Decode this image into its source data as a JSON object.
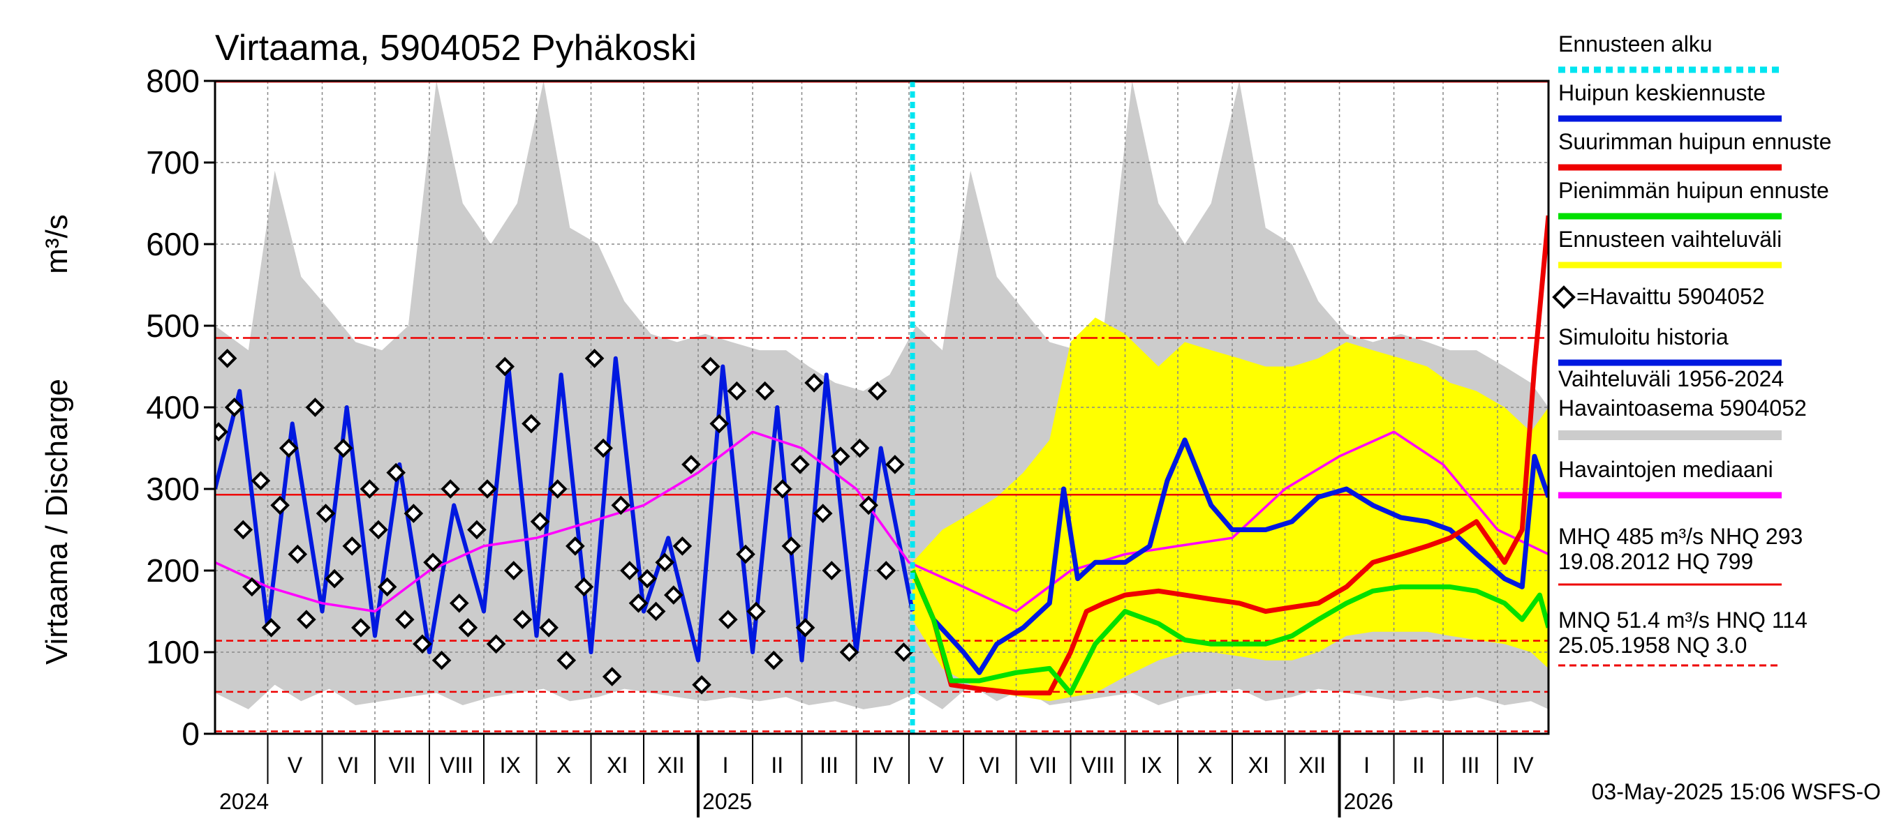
{
  "chart_data": {
    "type": "line",
    "title": "Virtaama, 5904052 Pyhäkoski",
    "ylabel": "Virtaama / Discharge",
    "ylabel_unit": "m³/s",
    "ylim": [
      0,
      800
    ],
    "yticks": [
      0,
      100,
      200,
      300,
      400,
      500,
      600,
      700,
      800
    ],
    "xlim": [
      "2024-04-01",
      "2026-04-30"
    ],
    "forecast_start": "2025-05-03",
    "grid": true,
    "legend_position": "right",
    "months": [
      {
        "label": "V",
        "start": "2024-05-01"
      },
      {
        "label": "VI",
        "start": "2024-06-01"
      },
      {
        "label": "VII",
        "start": "2024-07-01"
      },
      {
        "label": "VIII",
        "start": "2024-08-01"
      },
      {
        "label": "IX",
        "start": "2024-09-01"
      },
      {
        "label": "X",
        "start": "2024-10-01"
      },
      {
        "label": "XI",
        "start": "2024-11-01"
      },
      {
        "label": "XII",
        "start": "2024-12-01"
      },
      {
        "label": "I",
        "start": "2025-01-01"
      },
      {
        "label": "II",
        "start": "2025-02-01"
      },
      {
        "label": "III",
        "start": "2025-03-01"
      },
      {
        "label": "IV",
        "start": "2025-04-01"
      },
      {
        "label": "V",
        "start": "2025-05-01"
      },
      {
        "label": "VI",
        "start": "2025-06-01"
      },
      {
        "label": "VII",
        "start": "2025-07-01"
      },
      {
        "label": "VIII",
        "start": "2025-08-01"
      },
      {
        "label": "IX",
        "start": "2025-09-01"
      },
      {
        "label": "X",
        "start": "2025-10-01"
      },
      {
        "label": "XI",
        "start": "2025-11-01"
      },
      {
        "label": "XII",
        "start": "2025-12-01"
      },
      {
        "label": "I",
        "start": "2026-01-01"
      },
      {
        "label": "II",
        "start": "2026-02-01"
      },
      {
        "label": "III",
        "start": "2026-03-01"
      },
      {
        "label": "IV",
        "start": "2026-04-01"
      }
    ],
    "years": [
      {
        "label": "2024",
        "start": "2024-04-01"
      },
      {
        "label": "2025",
        "start": "2025-01-01"
      },
      {
        "label": "2026",
        "start": "2026-01-01"
      }
    ],
    "reference_lines": [
      {
        "name": "MHQ",
        "value": 485,
        "style": "dashdot"
      },
      {
        "name": "NHQ",
        "value": 293,
        "style": "solid"
      },
      {
        "name": "HQ",
        "value": 799,
        "style": "solid"
      },
      {
        "name": "MNQ",
        "value": 51.4,
        "style": "dashed"
      },
      {
        "name": "HNQ",
        "value": 114,
        "style": "dashed"
      },
      {
        "name": "NQ",
        "value": 3.0,
        "style": "dashed"
      }
    ],
    "legend": [
      {
        "label": "Ennusteen alku",
        "color": "#00e5f0",
        "style": "dotted"
      },
      {
        "label": "Huipun keskiennuste",
        "color": "#0018e0",
        "style": "solid"
      },
      {
        "label": "Suurimman huipun ennuste",
        "color": "#ee0000",
        "style": "solid"
      },
      {
        "label": "Pienimmän huipun ennuste",
        "color": "#00e000",
        "style": "solid"
      },
      {
        "label": "Ennusteen vaihteluväli",
        "color": "#ffff00",
        "style": "solid"
      },
      {
        "label": "=Havaittu 5904052",
        "color": "#000000",
        "style": "marker"
      },
      {
        "label": "Simuloitu historia",
        "color": "#0018e0",
        "style": "solid"
      },
      {
        "label": "Vaihteluväli 1956-2024",
        "label2": " Havaintoasema 5904052",
        "color": "#cccccc",
        "style": "solid"
      },
      {
        "label": "Havaintojen mediaani",
        "color": "#ff00ff",
        "style": "solid"
      }
    ],
    "stats": [
      {
        "line1": "MHQ  485 m³/s NHQ  293",
        "line2": "19.08.2012 HQ  799"
      },
      {
        "line1": "MNQ  51.4 m³/s HNQ  114",
        "line2": "25.05.1958 NQ  3.0"
      }
    ],
    "footer": "03-May-2025 15:06 WSFS-O",
    "series": [
      {
        "name": "Vaihteluväli 1956-2024",
        "kind": "band",
        "color": "#cccccc",
        "x": [
          "2024-04-01",
          "2024-04-20",
          "2024-05-05",
          "2024-05-20",
          "2024-06-05",
          "2024-06-20",
          "2024-07-05",
          "2024-07-20",
          "2024-08-05",
          "2024-08-20",
          "2024-09-05",
          "2024-09-20",
          "2024-10-05",
          "2024-10-20",
          "2024-11-05",
          "2024-11-20",
          "2024-12-05",
          "2024-12-20",
          "2025-01-05",
          "2025-01-20",
          "2025-02-05",
          "2025-02-20",
          "2025-03-05",
          "2025-03-20",
          "2025-04-05",
          "2025-04-20",
          "2025-05-05",
          "2025-05-20",
          "2025-06-05",
          "2025-06-20",
          "2025-07-05",
          "2025-07-20",
          "2025-08-05",
          "2025-08-20",
          "2025-09-05",
          "2025-09-20",
          "2025-10-05",
          "2025-10-20",
          "2025-11-05",
          "2025-11-20",
          "2025-12-05",
          "2025-12-20",
          "2026-01-05",
          "2026-01-20",
          "2026-02-05",
          "2026-02-20",
          "2026-03-05",
          "2026-03-20",
          "2026-04-05",
          "2026-04-20",
          "2026-04-30"
        ],
        "upper": [
          500,
          470,
          690,
          560,
          520,
          480,
          470,
          500,
          800,
          650,
          600,
          650,
          800,
          620,
          600,
          530,
          490,
          480,
          490,
          480,
          470,
          470,
          450,
          430,
          420,
          440,
          500,
          470,
          690,
          560,
          520,
          480,
          470,
          500,
          800,
          650,
          600,
          650,
          800,
          620,
          600,
          530,
          490,
          480,
          490,
          480,
          470,
          470,
          450,
          430,
          400
        ],
        "lower": [
          50,
          30,
          60,
          40,
          55,
          35,
          40,
          45,
          50,
          35,
          45,
          50,
          55,
          40,
          45,
          55,
          50,
          45,
          40,
          45,
          40,
          45,
          35,
          40,
          30,
          35,
          50,
          30,
          60,
          40,
          55,
          35,
          40,
          45,
          50,
          35,
          45,
          50,
          55,
          40,
          45,
          55,
          50,
          45,
          40,
          45,
          40,
          45,
          35,
          40,
          30
        ]
      },
      {
        "name": "Ennusteen vaihteluväli",
        "kind": "band",
        "color": "#ffff00",
        "x": [
          "2025-05-03",
          "2025-05-20",
          "2025-06-05",
          "2025-06-20",
          "2025-07-05",
          "2025-07-20",
          "2025-08-01",
          "2025-08-15",
          "2025-09-01",
          "2025-09-20",
          "2025-10-05",
          "2025-10-20",
          "2025-11-05",
          "2025-11-20",
          "2025-12-05",
          "2025-12-20",
          "2026-01-05",
          "2026-01-20",
          "2026-02-05",
          "2026-02-20",
          "2026-03-05",
          "2026-03-20",
          "2026-04-05",
          "2026-04-20",
          "2026-04-30"
        ],
        "upper": [
          210,
          250,
          270,
          290,
          320,
          360,
          480,
          510,
          490,
          450,
          480,
          470,
          460,
          450,
          450,
          460,
          480,
          470,
          460,
          450,
          430,
          420,
          400,
          370,
          400
        ],
        "lower": [
          140,
          80,
          60,
          50,
          45,
          40,
          45,
          50,
          70,
          90,
          100,
          100,
          95,
          90,
          90,
          100,
          120,
          125,
          125,
          125,
          120,
          115,
          110,
          100,
          80
        ]
      },
      {
        "name": "Simuloitu historia",
        "kind": "line",
        "color": "#0018e0",
        "x": [
          "2024-04-01",
          "2024-04-15",
          "2024-05-01",
          "2024-05-15",
          "2024-06-01",
          "2024-06-15",
          "2024-07-01",
          "2024-07-15",
          "2024-08-01",
          "2024-08-15",
          "2024-09-01",
          "2024-09-15",
          "2024-10-01",
          "2024-10-15",
          "2024-11-01",
          "2024-11-15",
          "2024-12-01",
          "2024-12-15",
          "2025-01-01",
          "2025-01-15",
          "2025-02-01",
          "2025-02-15",
          "2025-03-01",
          "2025-03-15",
          "2025-04-01",
          "2025-04-15",
          "2025-05-03"
        ],
        "values": [
          300,
          420,
          130,
          380,
          150,
          400,
          120,
          330,
          100,
          280,
          150,
          450,
          120,
          440,
          100,
          460,
          150,
          240,
          90,
          450,
          100,
          400,
          90,
          440,
          100,
          350,
          150
        ]
      },
      {
        "name": "Havaintojen mediaani",
        "kind": "line",
        "color": "#ff00ff",
        "x": [
          "2024-04-01",
          "2024-05-01",
          "2024-06-01",
          "2024-07-01",
          "2024-08-01",
          "2024-09-01",
          "2024-10-01",
          "2024-11-01",
          "2024-12-01",
          "2025-01-01",
          "2025-02-01",
          "2025-03-01",
          "2025-04-01",
          "2025-05-01",
          "2025-06-01",
          "2025-07-01",
          "2025-08-01",
          "2025-09-01",
          "2025-10-01",
          "2025-11-01",
          "2025-12-01",
          "2026-01-01",
          "2026-02-01",
          "2026-03-01",
          "2026-04-01",
          "2026-04-30"
        ],
        "values": [
          210,
          180,
          160,
          150,
          200,
          230,
          240,
          260,
          280,
          320,
          370,
          350,
          300,
          210,
          180,
          150,
          200,
          220,
          230,
          240,
          300,
          340,
          370,
          330,
          250,
          220
        ]
      },
      {
        "name": "Huipun keskiennuste",
        "kind": "line",
        "color": "#0018e0",
        "x": [
          "2025-05-03",
          "2025-05-15",
          "2025-06-01",
          "2025-06-10",
          "2025-06-20",
          "2025-07-05",
          "2025-07-20",
          "2025-07-28",
          "2025-08-05",
          "2025-08-15",
          "2025-09-01",
          "2025-09-15",
          "2025-09-25",
          "2025-10-05",
          "2025-10-20",
          "2025-11-01",
          "2025-11-20",
          "2025-12-05",
          "2025-12-20",
          "2026-01-05",
          "2026-01-20",
          "2026-02-05",
          "2026-02-20",
          "2026-03-05",
          "2026-03-20",
          "2026-04-05",
          "2026-04-15",
          "2026-04-22",
          "2026-04-30"
        ],
        "values": [
          200,
          140,
          100,
          75,
          110,
          130,
          160,
          300,
          190,
          210,
          210,
          230,
          310,
          360,
          280,
          250,
          250,
          260,
          290,
          300,
          280,
          265,
          260,
          250,
          220,
          190,
          180,
          340,
          290
        ]
      },
      {
        "name": "Suurimman huipun ennuste",
        "kind": "line",
        "color": "#ee0000",
        "x": [
          "2025-05-03",
          "2025-05-15",
          "2025-05-25",
          "2025-06-10",
          "2025-07-01",
          "2025-07-20",
          "2025-08-01",
          "2025-08-10",
          "2025-08-20",
          "2025-09-01",
          "2025-09-20",
          "2025-10-05",
          "2025-10-20",
          "2025-11-05",
          "2025-11-20",
          "2025-12-05",
          "2025-12-20",
          "2026-01-05",
          "2026-01-20",
          "2026-02-05",
          "2026-02-20",
          "2026-03-05",
          "2026-03-20",
          "2026-04-05",
          "2026-04-15",
          "2026-04-22",
          "2026-04-30"
        ],
        "values": [
          200,
          140,
          60,
          55,
          50,
          50,
          100,
          150,
          160,
          170,
          175,
          170,
          165,
          160,
          150,
          155,
          160,
          180,
          210,
          220,
          230,
          240,
          260,
          210,
          250,
          450,
          635
        ]
      },
      {
        "name": "Pienimmän huipun ennuste",
        "kind": "line",
        "color": "#00e000",
        "x": [
          "2025-05-03",
          "2025-05-15",
          "2025-05-25",
          "2025-06-10",
          "2025-07-01",
          "2025-07-20",
          "2025-08-01",
          "2025-08-15",
          "2025-09-01",
          "2025-09-20",
          "2025-10-05",
          "2025-10-20",
          "2025-11-05",
          "2025-11-20",
          "2025-12-05",
          "2025-12-20",
          "2026-01-05",
          "2026-01-20",
          "2026-02-05",
          "2026-02-20",
          "2026-03-05",
          "2026-03-20",
          "2026-04-05",
          "2026-04-15",
          "2026-04-25",
          "2026-04-30"
        ],
        "values": [
          200,
          140,
          65,
          65,
          75,
          80,
          50,
          110,
          150,
          135,
          115,
          110,
          110,
          110,
          120,
          140,
          160,
          175,
          180,
          180,
          180,
          175,
          160,
          140,
          170,
          130
        ]
      },
      {
        "name": "=Havaittu 5904052",
        "kind": "scatter",
        "color": "#000000",
        "x": [
          "2024-04-03",
          "2024-04-08",
          "2024-04-12",
          "2024-04-17",
          "2024-04-22",
          "2024-04-27",
          "2024-05-03",
          "2024-05-08",
          "2024-05-13",
          "2024-05-18",
          "2024-05-23",
          "2024-05-28",
          "2024-06-03",
          "2024-06-08",
          "2024-06-13",
          "2024-06-18",
          "2024-06-23",
          "2024-06-28",
          "2024-07-03",
          "2024-07-08",
          "2024-07-13",
          "2024-07-18",
          "2024-07-23",
          "2024-07-28",
          "2024-08-03",
          "2024-08-08",
          "2024-08-13",
          "2024-08-18",
          "2024-08-23",
          "2024-08-28",
          "2024-09-03",
          "2024-09-08",
          "2024-09-13",
          "2024-09-18",
          "2024-09-23",
          "2024-09-28",
          "2024-10-03",
          "2024-10-08",
          "2024-10-13",
          "2024-10-18",
          "2024-10-23",
          "2024-10-28",
          "2024-11-03",
          "2024-11-08",
          "2024-11-13",
          "2024-11-18",
          "2024-11-23",
          "2024-11-28",
          "2024-12-03",
          "2024-12-08",
          "2024-12-13",
          "2024-12-18",
          "2024-12-23",
          "2024-12-28",
          "2025-01-03",
          "2025-01-08",
          "2025-01-13",
          "2025-01-18",
          "2025-01-23",
          "2025-01-28",
          "2025-02-03",
          "2025-02-08",
          "2025-02-13",
          "2025-02-18",
          "2025-02-23",
          "2025-02-28",
          "2025-03-03",
          "2025-03-08",
          "2025-03-13",
          "2025-03-18",
          "2025-03-23",
          "2025-03-28",
          "2025-04-03",
          "2025-04-08",
          "2025-04-13",
          "2025-04-18",
          "2025-04-23",
          "2025-04-28"
        ],
        "values": [
          370,
          460,
          400,
          250,
          180,
          310,
          130,
          280,
          350,
          220,
          140,
          400,
          270,
          190,
          350,
          230,
          130,
          300,
          250,
          180,
          320,
          140,
          270,
          110,
          210,
          90,
          300,
          160,
          130,
          250,
          300,
          110,
          450,
          200,
          140,
          380,
          260,
          130,
          300,
          90,
          230,
          180,
          460,
          350,
          70,
          280,
          200,
          160,
          190,
          150,
          210,
          170,
          230,
          330,
          60,
          450,
          380,
          140,
          420,
          220,
          150,
          420,
          90,
          300,
          230,
          330,
          130,
          430,
          270,
          200,
          340,
          100,
          350,
          280,
          420,
          200,
          330,
          100
        ]
      }
    ]
  }
}
